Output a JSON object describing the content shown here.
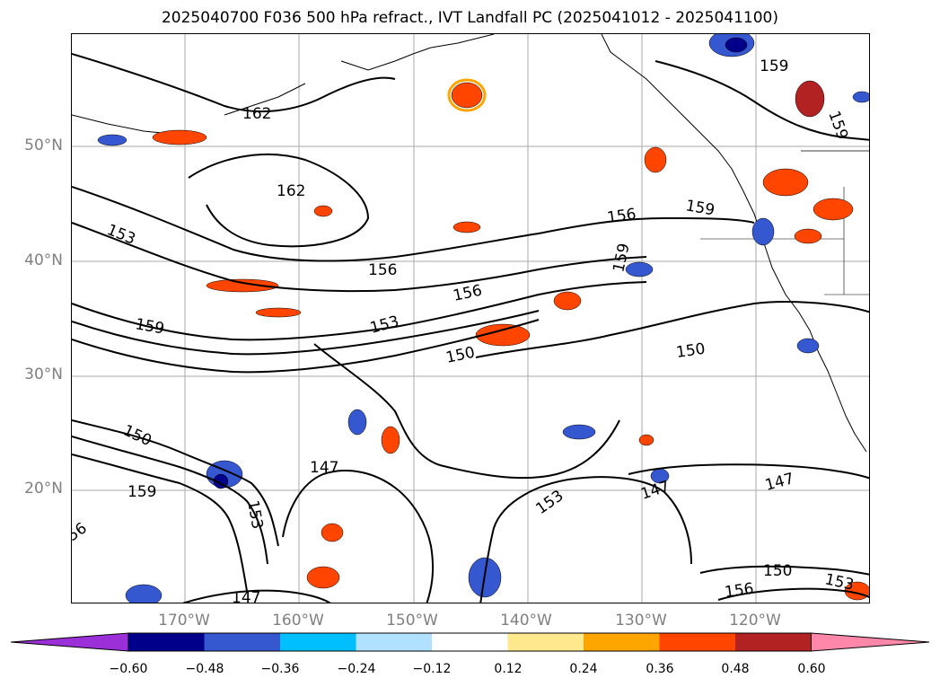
{
  "title": "2025040700 F036 500 hPa refract., IVT Landfall PC (2025041012 - 2025041100)",
  "lat_labels": [
    "50°N",
    "40°N",
    "30°N",
    "20°N"
  ],
  "lon_labels": [
    "170°W",
    "160°W",
    "150°W",
    "140°W",
    "130°W",
    "120°W"
  ],
  "colorbar": {
    "ticks": [
      "−0.60",
      "−0.48",
      "−0.36",
      "−0.24",
      "−0.12",
      "0.12",
      "0.24",
      "0.36",
      "0.48",
      "0.60"
    ],
    "colors": [
      "#9b30d9",
      "#00008b",
      "#3558d0",
      "#00bfff",
      "#b0e2ff",
      "#ffffff",
      "#ffe98c",
      "#ffa500",
      "#ff4500",
      "#b22222",
      "#ff88aa"
    ]
  },
  "contour_labels": [
    {
      "text": "162"
    },
    {
      "text": "162"
    },
    {
      "text": "153"
    },
    {
      "text": "156"
    },
    {
      "text": "159"
    },
    {
      "text": "156"
    },
    {
      "text": "159"
    },
    {
      "text": "159"
    },
    {
      "text": "156"
    },
    {
      "text": "153"
    },
    {
      "text": "150"
    },
    {
      "text": "150"
    },
    {
      "text": "159"
    },
    {
      "text": "159"
    },
    {
      "text": "150"
    },
    {
      "text": "147"
    },
    {
      "text": "159"
    },
    {
      "text": "153"
    },
    {
      "text": "56"
    },
    {
      "text": "153"
    },
    {
      "text": "147"
    },
    {
      "text": "147"
    },
    {
      "text": "147"
    },
    {
      "text": "150"
    },
    {
      "text": "156"
    },
    {
      "text": "153"
    }
  ]
}
